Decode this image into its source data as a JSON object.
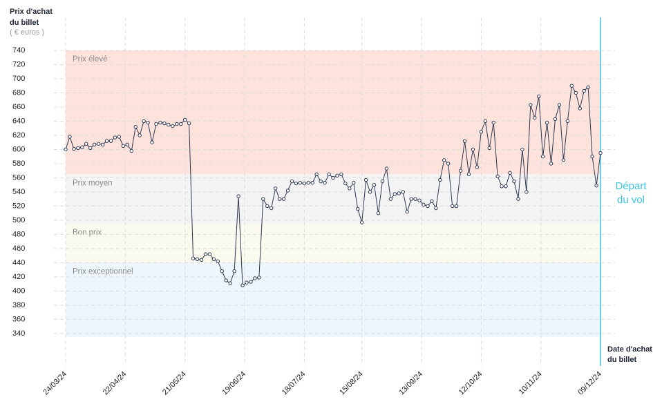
{
  "chart_data": {
    "type": "line",
    "y_label": [
      "Prix d'achat",
      "du billet"
    ],
    "y_unit": "( € euros )",
    "x_label": [
      "Date d'achat",
      "du billet"
    ],
    "annotation": {
      "x": "09/12/24",
      "label": [
        "Départ",
        "du vol"
      ],
      "color": "#3cc4dc"
    },
    "bands": [
      {
        "label": "Prix élevé",
        "from": 565,
        "to": 740,
        "color": "#fde3dc"
      },
      {
        "label": "Prix moyen",
        "from": 495,
        "to": 565,
        "color": "#f4f4f5"
      },
      {
        "label": "Bon prix",
        "from": 440,
        "to": 495,
        "color": "#fbfaee"
      },
      {
        "label": "Prix exceptionnel",
        "from": 335,
        "to": 440,
        "color": "#eef6fb"
      }
    ],
    "ylim": [
      335,
      740
    ],
    "yticks": [
      340,
      360,
      380,
      400,
      420,
      440,
      460,
      480,
      500,
      520,
      540,
      560,
      580,
      600,
      620,
      640,
      660,
      680,
      700,
      720,
      740
    ],
    "xlim": [
      "24/03/24",
      "09/12/24"
    ],
    "xticks": [
      "24/03/24",
      "22/04/24",
      "21/05/24",
      "19/06/24",
      "18/07/24",
      "15/08/24",
      "13/09/24",
      "12/10/24",
      "10/11/24",
      "09/12/24"
    ],
    "grid": true,
    "x": [
      "24/03/24",
      "26/03/24",
      "28/03/24",
      "30/03/24",
      "01/04/24",
      "03/04/24",
      "05/04/24",
      "07/04/24",
      "09/04/24",
      "11/04/24",
      "13/04/24",
      "15/04/24",
      "17/04/24",
      "19/04/24",
      "21/04/24",
      "23/04/24",
      "25/04/24",
      "27/04/24",
      "29/04/24",
      "01/05/24",
      "03/05/24",
      "05/05/24",
      "07/05/24",
      "09/05/24",
      "11/05/24",
      "13/05/24",
      "15/05/24",
      "17/05/24",
      "19/05/24",
      "21/05/24",
      "23/05/24",
      "25/05/24",
      "27/05/24",
      "29/05/24",
      "31/05/24",
      "02/06/24",
      "04/06/24",
      "06/06/24",
      "08/06/24",
      "10/06/24",
      "12/06/24",
      "14/06/24",
      "16/06/24",
      "18/06/24",
      "20/06/24",
      "22/06/24",
      "24/06/24",
      "26/06/24",
      "28/06/24",
      "30/06/24",
      "02/07/24",
      "04/07/24",
      "06/07/24",
      "08/07/24",
      "10/07/24",
      "12/07/24",
      "14/07/24",
      "16/07/24",
      "18/07/24",
      "20/07/24",
      "22/07/24",
      "24/07/24",
      "26/07/24",
      "28/07/24",
      "30/07/24",
      "01/08/24",
      "03/08/24",
      "05/08/24",
      "07/08/24",
      "09/08/24",
      "11/08/24",
      "13/08/24",
      "15/08/24",
      "17/08/24",
      "19/08/24",
      "21/08/24",
      "23/08/24",
      "25/08/24",
      "27/08/24",
      "29/08/24",
      "31/08/24",
      "02/09/24",
      "04/09/24",
      "06/09/24",
      "08/09/24",
      "10/09/24",
      "12/09/24",
      "14/09/24",
      "16/09/24",
      "18/09/24",
      "20/09/24",
      "22/09/24",
      "24/09/24",
      "26/09/24",
      "28/09/24",
      "30/09/24",
      "02/10/24",
      "04/10/24",
      "06/10/24",
      "08/10/24",
      "10/10/24",
      "12/10/24",
      "14/10/24",
      "16/10/24",
      "18/10/24",
      "20/10/24",
      "22/10/24",
      "24/10/24",
      "26/10/24",
      "28/10/24",
      "30/10/24",
      "01/11/24",
      "03/11/24",
      "05/11/24",
      "07/11/24",
      "09/11/24",
      "11/11/24",
      "13/11/24",
      "15/11/24",
      "17/11/24",
      "19/11/24",
      "21/11/24",
      "23/11/24",
      "25/11/24",
      "27/11/24",
      "29/11/24",
      "01/12/24",
      "03/12/24",
      "05/12/24",
      "07/12/24",
      "09/12/24"
    ],
    "color": "#2b3650",
    "values": [
      600,
      618,
      601,
      602,
      603,
      608,
      602,
      607,
      608,
      607,
      612,
      612,
      617,
      618,
      605,
      607,
      598,
      632,
      620,
      640,
      638,
      610,
      636,
      638,
      637,
      635,
      633,
      636,
      636,
      642,
      637,
      446,
      445,
      444,
      452,
      452,
      445,
      442,
      428,
      415,
      411,
      428,
      534,
      408,
      412,
      413,
      418,
      419,
      530,
      520,
      517,
      545,
      530,
      530,
      542,
      555,
      552,
      553,
      552,
      553,
      553,
      565,
      555,
      553,
      565,
      560,
      563,
      565,
      552,
      545,
      553,
      516,
      497,
      557,
      540,
      550,
      510,
      555,
      573,
      530,
      537,
      538,
      540,
      512,
      530,
      530,
      528,
      522,
      520,
      527,
      517,
      557,
      585,
      580,
      520,
      520,
      570,
      612,
      565,
      600,
      575,
      625,
      640,
      602,
      638,
      562,
      548,
      548,
      567,
      555,
      530,
      600,
      540,
      663,
      645,
      675,
      590,
      638,
      580,
      643,
      663,
      585,
      640,
      690,
      680,
      658,
      683,
      688,
      590,
      549,
      595
    ]
  }
}
